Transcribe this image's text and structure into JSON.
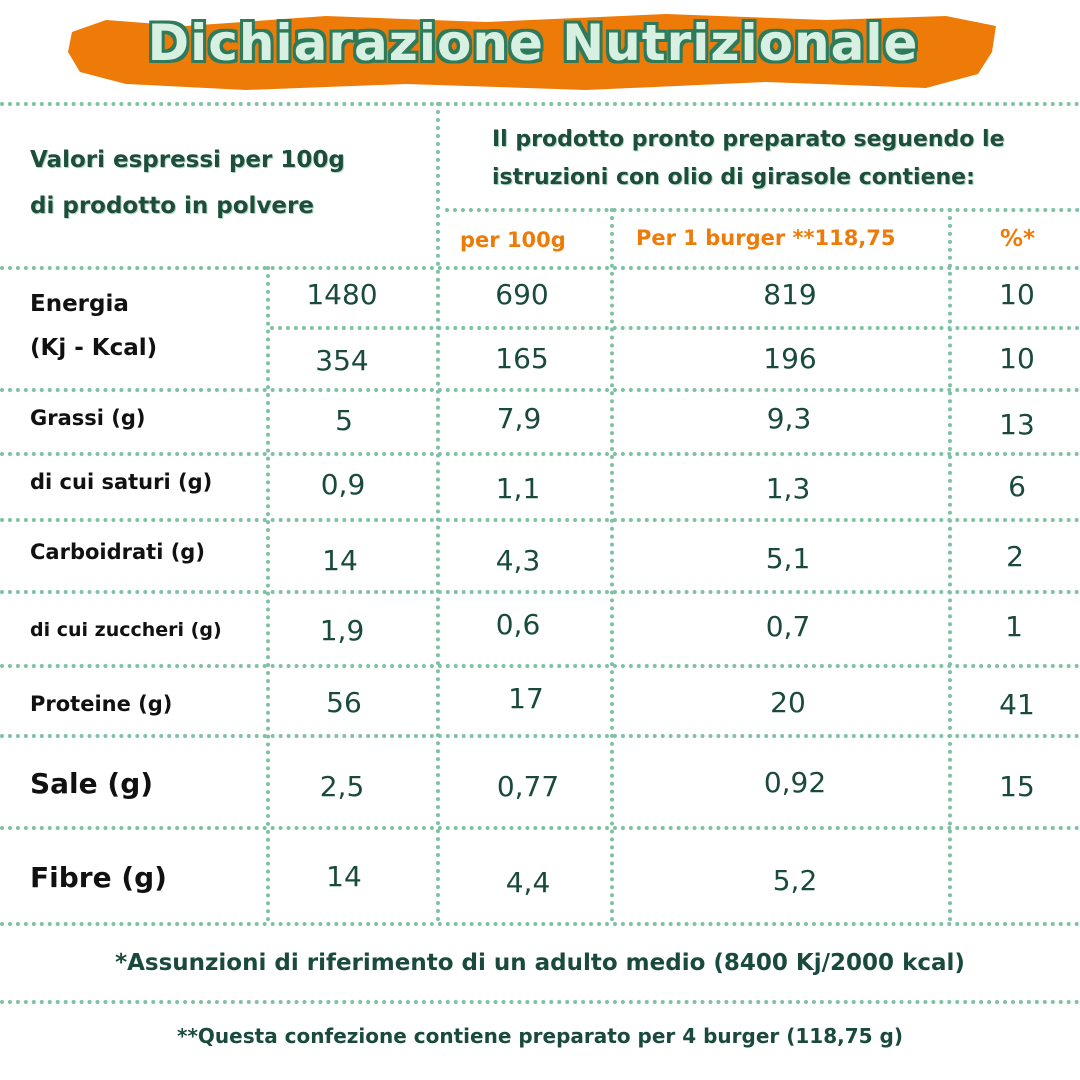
{
  "title": "Dichiarazione Nutrizionale",
  "colors": {
    "accent_orange": "#ee7b08",
    "text_green": "#1a4a3e",
    "dotted_lines": "#7fc2a3"
  },
  "header": {
    "left_line1": "Valori espressi per 100g",
    "left_line2": "di prodotto in polvere",
    "right_line1": "Il prodotto pronto preparato seguendo le",
    "right_line2": "istruzioni con olio di girasole contiene:",
    "col_per100": "per 100g",
    "col_burger": "Per 1 burger **118,75",
    "col_percent": "%*"
  },
  "rows": {
    "energia": {
      "label1": "Energia",
      "label2": "(Kj - Kcal)",
      "kj": [
        "1480",
        "690",
        "819",
        "10"
      ],
      "kcal": [
        "354",
        "165",
        "196",
        "10"
      ]
    },
    "grassi": {
      "label": "Grassi (g)",
      "values": [
        "5",
        "7,9",
        "9,3",
        "13"
      ]
    },
    "saturi": {
      "label": "di cui saturi (g)",
      "values": [
        "0,9",
        "1,1",
        "1,3",
        "6"
      ]
    },
    "carboidrati": {
      "label": "Carboidrati (g)",
      "values": [
        "14",
        "4,3",
        "5,1",
        "2"
      ]
    },
    "zuccheri": {
      "label": "di cui zuccheri (g)",
      "values": [
        "1,9",
        "0,6",
        "0,7",
        "1"
      ]
    },
    "proteine": {
      "label": "Proteine (g)",
      "values": [
        "56",
        "17",
        "20",
        "41"
      ]
    },
    "sale": {
      "label": "Sale (g)",
      "values": [
        "2,5",
        "0,77",
        "0,92",
        "15"
      ]
    },
    "fibre": {
      "label": "Fibre (g)",
      "values": [
        "14",
        "4,4",
        "5,2"
      ]
    }
  },
  "footnotes": {
    "reference": "*Assunzioni di riferimento di un adulto medio (8400 Kj/2000 kcal)",
    "package": "**Questa confezione contiene preparato per 4 burger  (118,75 g)"
  }
}
